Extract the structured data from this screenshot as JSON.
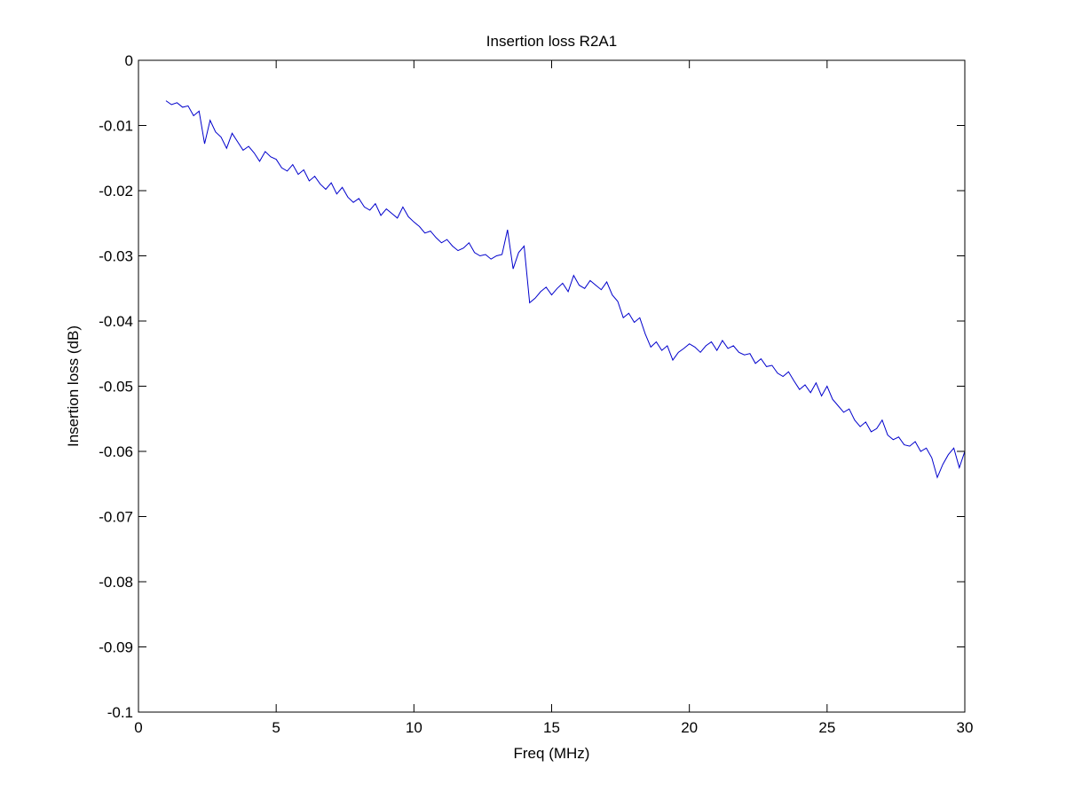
{
  "chart_data": {
    "type": "line",
    "title": "Insertion loss R2A1",
    "xlabel": "Freq (MHz)",
    "ylabel": "Insertion loss (dB)",
    "xlim": [
      0,
      30
    ],
    "ylim": [
      -0.1,
      0
    ],
    "xticks": [
      0,
      5,
      10,
      15,
      20,
      25,
      30
    ],
    "xtick_labels": [
      "0",
      "5",
      "10",
      "15",
      "20",
      "25",
      "30"
    ],
    "yticks": [
      0,
      -0.01,
      -0.02,
      -0.03,
      -0.04,
      -0.05,
      -0.06,
      -0.07,
      -0.08,
      -0.09,
      -0.1
    ],
    "ytick_labels": [
      "0",
      "-0.01",
      "-0.02",
      "-0.03",
      "-0.04",
      "-0.05",
      "-0.06",
      "-0.07",
      "-0.08",
      "-0.09",
      "-0.1"
    ],
    "grid": false,
    "series": [
      {
        "color": "#0000cc",
        "x": [
          1.0,
          1.2,
          1.4,
          1.6,
          1.8,
          2.0,
          2.2,
          2.4,
          2.6,
          2.8,
          3.0,
          3.2,
          3.4,
          3.6,
          3.8,
          4.0,
          4.2,
          4.4,
          4.6,
          4.8,
          5.0,
          5.2,
          5.4,
          5.6,
          5.8,
          6.0,
          6.2,
          6.4,
          6.6,
          6.8,
          7.0,
          7.2,
          7.4,
          7.6,
          7.8,
          8.0,
          8.2,
          8.4,
          8.6,
          8.8,
          9.0,
          9.2,
          9.4,
          9.6,
          9.8,
          10.0,
          10.2,
          10.4,
          10.6,
          10.8,
          11.0,
          11.2,
          11.4,
          11.6,
          11.8,
          12.0,
          12.2,
          12.4,
          12.6,
          12.8,
          13.0,
          13.2,
          13.4,
          13.6,
          13.8,
          14.0,
          14.2,
          14.4,
          14.6,
          14.8,
          15.0,
          15.2,
          15.4,
          15.6,
          15.8,
          16.0,
          16.2,
          16.4,
          16.6,
          16.8,
          17.0,
          17.2,
          17.4,
          17.6,
          17.8,
          18.0,
          18.2,
          18.4,
          18.6,
          18.8,
          19.0,
          19.2,
          19.4,
          19.6,
          19.8,
          20.0,
          20.2,
          20.4,
          20.6,
          20.8,
          21.0,
          21.2,
          21.4,
          21.6,
          21.8,
          22.0,
          22.2,
          22.4,
          22.6,
          22.8,
          23.0,
          23.2,
          23.4,
          23.6,
          23.8,
          24.0,
          24.2,
          24.4,
          24.6,
          24.8,
          25.0,
          25.2,
          25.4,
          25.6,
          25.8,
          26.0,
          26.2,
          26.4,
          26.6,
          26.8,
          27.0,
          27.2,
          27.4,
          27.6,
          27.8,
          28.0,
          28.2,
          28.4,
          28.6,
          28.8,
          29.0,
          29.2,
          29.4,
          29.6,
          29.8,
          30.0
        ],
        "y": [
          -0.0062,
          -0.0068,
          -0.0065,
          -0.0072,
          -0.007,
          -0.0085,
          -0.0078,
          -0.0128,
          -0.0092,
          -0.011,
          -0.0118,
          -0.0135,
          -0.0112,
          -0.0125,
          -0.0138,
          -0.0132,
          -0.0142,
          -0.0155,
          -0.014,
          -0.0148,
          -0.0152,
          -0.0165,
          -0.017,
          -0.016,
          -0.0175,
          -0.0168,
          -0.0185,
          -0.0178,
          -0.019,
          -0.0198,
          -0.0188,
          -0.0205,
          -0.0195,
          -0.021,
          -0.0218,
          -0.0212,
          -0.0225,
          -0.023,
          -0.022,
          -0.0238,
          -0.0228,
          -0.0235,
          -0.0242,
          -0.0225,
          -0.024,
          -0.0248,
          -0.0255,
          -0.0265,
          -0.0262,
          -0.0272,
          -0.028,
          -0.0275,
          -0.0285,
          -0.0292,
          -0.0288,
          -0.028,
          -0.0295,
          -0.03,
          -0.0298,
          -0.0305,
          -0.03,
          -0.0298,
          -0.026,
          -0.032,
          -0.0295,
          -0.0285,
          -0.0372,
          -0.0365,
          -0.0355,
          -0.0348,
          -0.036,
          -0.035,
          -0.0342,
          -0.0355,
          -0.033,
          -0.0345,
          -0.035,
          -0.0338,
          -0.0345,
          -0.0352,
          -0.034,
          -0.036,
          -0.037,
          -0.0395,
          -0.0388,
          -0.0402,
          -0.0395,
          -0.042,
          -0.044,
          -0.0432,
          -0.0445,
          -0.0438,
          -0.046,
          -0.0448,
          -0.0442,
          -0.0435,
          -0.044,
          -0.0448,
          -0.0438,
          -0.0432,
          -0.0445,
          -0.043,
          -0.0442,
          -0.0438,
          -0.0448,
          -0.0452,
          -0.045,
          -0.0465,
          -0.0458,
          -0.047,
          -0.0468,
          -0.048,
          -0.0485,
          -0.0478,
          -0.0492,
          -0.0505,
          -0.0498,
          -0.051,
          -0.0495,
          -0.0515,
          -0.05,
          -0.052,
          -0.053,
          -0.054,
          -0.0535,
          -0.0552,
          -0.0562,
          -0.0555,
          -0.057,
          -0.0565,
          -0.0552,
          -0.0575,
          -0.0582,
          -0.0578,
          -0.059,
          -0.0592,
          -0.0585,
          -0.06,
          -0.0595,
          -0.061,
          -0.064,
          -0.062,
          -0.0605,
          -0.0595,
          -0.0625,
          -0.06
        ]
      }
    ]
  }
}
